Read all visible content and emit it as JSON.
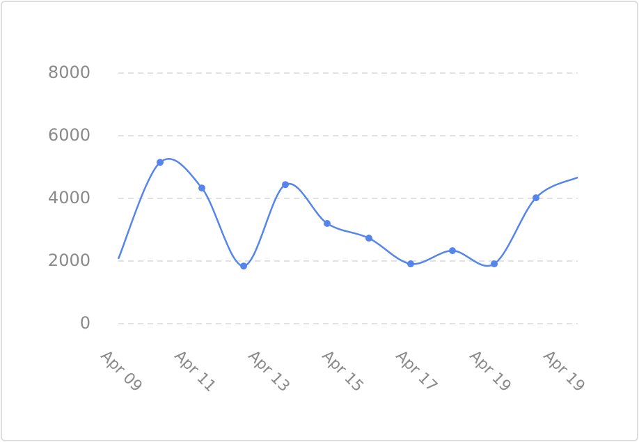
{
  "chart_data": {
    "type": "line",
    "categories": [
      null,
      null,
      null,
      null,
      null,
      null,
      null,
      null,
      null,
      null,
      null,
      null
    ],
    "values": [
      2070,
      5150,
      4330,
      1840,
      4440,
      3200,
      2730,
      1910,
      2330,
      1910,
      4020,
      4670
    ],
    "color": "#5585ec",
    "ylim": [
      0,
      8000
    ],
    "yticks": [
      0,
      2000,
      4000,
      6000,
      8000
    ],
    "grid": true,
    "xtick_labels": [
      "Apr 09",
      "Apr 11",
      "Apr 13",
      "Apr 15",
      "Apr 17",
      "Apr 19",
      "Apr 19"
    ]
  }
}
